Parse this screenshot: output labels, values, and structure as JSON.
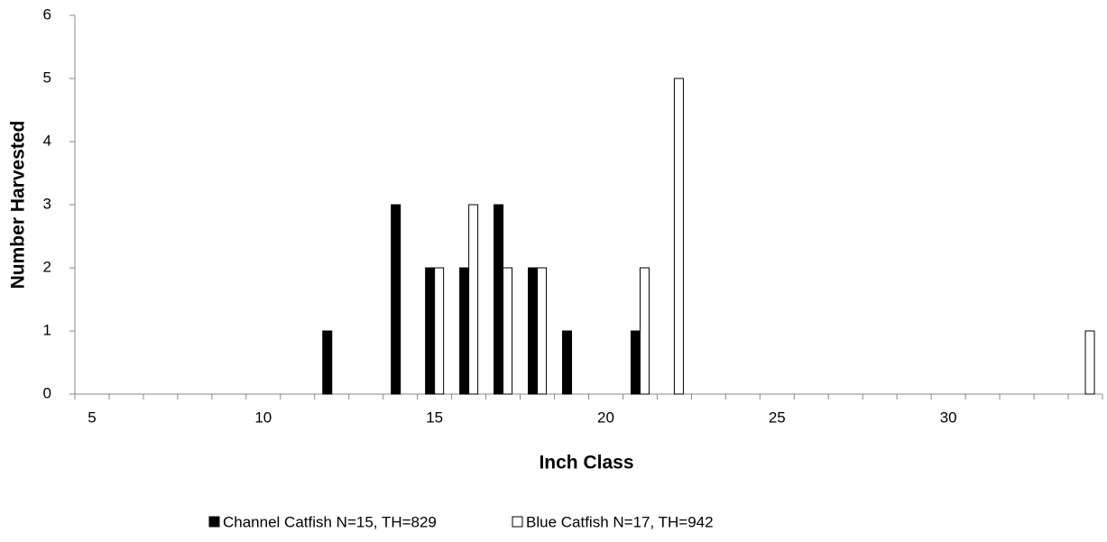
{
  "chart_data": {
    "type": "bar",
    "x_label": "Inch Class",
    "y_label": "Number Harvested",
    "categories": [
      "5",
      null,
      null,
      null,
      null,
      "10",
      null,
      null,
      null,
      null,
      "15",
      null,
      null,
      null,
      null,
      "20",
      null,
      null,
      null,
      null,
      "25",
      null,
      null,
      null,
      null,
      "30",
      null,
      null,
      null,
      null
    ],
    "series": [
      {
        "name": "Channel Catfish N=15, TH=829",
        "color": "#000000",
        "values": [
          0,
          0,
          0,
          0,
          0,
          0,
          0,
          1,
          0,
          3,
          2,
          2,
          3,
          2,
          1,
          0,
          1,
          0,
          0,
          0,
          0,
          0,
          0,
          0,
          0,
          0,
          0,
          0,
          0,
          0
        ]
      },
      {
        "name": "Blue Catfish N=17, TH=942",
        "color": "#ffffff",
        "values": [
          0,
          0,
          0,
          0,
          0,
          0,
          0,
          0,
          0,
          0,
          2,
          3,
          2,
          2,
          0,
          0,
          2,
          5,
          0,
          0,
          0,
          0,
          0,
          0,
          0,
          0,
          0,
          0,
          0,
          1
        ]
      }
    ],
    "ylim": [
      0,
      6
    ],
    "yticks": [
      0,
      1,
      2,
      3,
      4,
      5,
      6
    ]
  }
}
